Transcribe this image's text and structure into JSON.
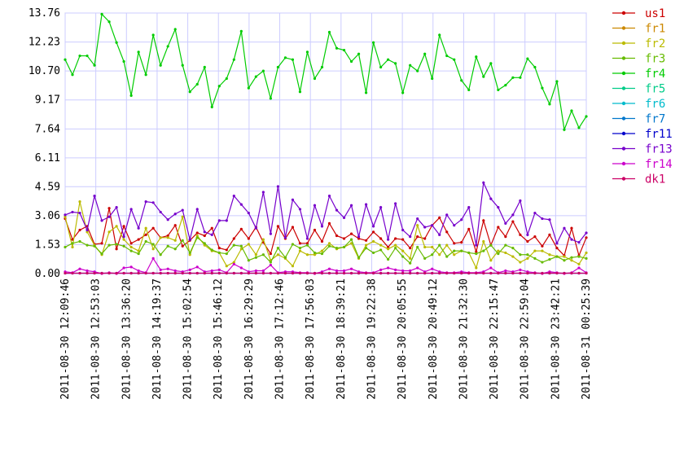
{
  "chart_data": {
    "type": "line",
    "title": "",
    "xlabel": "",
    "ylabel": "",
    "grid": true,
    "legend_position": "right",
    "y_ticks": [
      "0.00",
      "1.53",
      "3.06",
      "4.59",
      "6.11",
      "7.64",
      "9.17",
      "10.70",
      "12.23",
      "13.76"
    ],
    "y_tick_values": [
      0.0,
      1.53,
      3.06,
      4.59,
      6.11,
      7.64,
      9.17,
      10.7,
      12.23,
      13.76
    ],
    "ylim": [
      0,
      13.76
    ],
    "x_ticks": [
      "2011-08-30 12:09:46",
      "2011-08-30 12:53:03",
      "2011-08-30 13:36:20",
      "2011-08-30 14:19:37",
      "2011-08-30 15:02:54",
      "2011-08-30 15:46:12",
      "2011-08-30 16:29:29",
      "2011-08-30 17:12:46",
      "2011-08-30 17:56:03",
      "2011-08-30 18:39:21",
      "2011-08-30 19:22:38",
      "2011-08-30 20:05:55",
      "2011-08-30 20:49:12",
      "2011-08-30 21:32:30",
      "2011-08-30 22:15:47",
      "2011-08-30 22:59:04",
      "2011-08-30 23:42:21",
      "2011-08-31 00:25:39"
    ],
    "series": [
      {
        "name": "us1",
        "color": "#cc0000",
        "values": [
          2.9,
          1.8,
          2.3,
          2.5,
          1.55,
          1.6,
          3.45,
          1.3,
          2.5,
          1.6,
          1.8,
          2.05,
          2.4,
          1.9,
          2.0,
          2.55,
          1.45,
          1.75,
          2.15,
          2.0,
          2.4,
          1.35,
          1.25,
          1.85,
          2.35,
          1.85,
          2.45,
          1.65,
          1.05,
          2.5,
          1.85,
          2.45,
          1.6,
          1.6,
          2.3,
          1.7,
          2.65,
          2.0,
          1.85,
          2.1,
          1.85,
          1.75,
          2.2,
          1.85,
          1.4,
          1.85,
          1.8,
          1.35,
          1.95,
          1.85,
          2.55,
          2.95,
          2.2,
          1.6,
          1.65,
          2.35,
          1.15,
          2.8,
          1.5,
          2.45,
          1.95,
          2.75,
          2.05,
          1.7,
          1.95,
          1.45,
          2.05,
          1.35,
          0.95,
          2.4,
          0.95,
          1.9
        ]
      },
      {
        "name": "fr1",
        "color": "#cc8800",
        "values": []
      },
      {
        "name": "fr2",
        "color": "#bbbb00",
        "values": [
          3.0,
          1.4,
          3.8,
          2.2,
          1.5,
          1.0,
          2.2,
          2.5,
          1.8,
          1.4,
          1.2,
          2.4,
          1.3,
          1.9,
          1.9,
          1.75,
          3.0,
          1.0,
          2.0,
          1.5,
          1.2,
          1.1,
          0.4,
          0.6,
          1.3,
          1.55,
          1.0,
          1.8,
          0.7,
          1.0,
          0.8,
          0.4,
          1.2,
          1.0,
          1.0,
          1.2,
          1.6,
          1.3,
          1.4,
          1.6,
          0.8,
          1.5,
          1.7,
          1.5,
          1.3,
          1.5,
          1.2,
          0.8,
          2.55,
          1.4,
          1.4,
          1.0,
          1.5,
          1.0,
          1.2,
          1.1,
          0.3,
          1.7,
          0.7,
          1.2,
          1.1,
          0.9,
          0.6,
          0.8,
          1.2,
          1.2,
          1.0,
          0.9,
          0.9,
          0.7,
          0.5,
          1.1
        ]
      },
      {
        "name": "fr3",
        "color": "#66bb00",
        "values": [
          1.4,
          1.6,
          1.7,
          1.5,
          1.45,
          1.05,
          1.5,
          1.55,
          1.45,
          1.2,
          1.05,
          1.7,
          1.55,
          1.0,
          1.45,
          1.3,
          1.75,
          1.1,
          1.9,
          1.6,
          1.25,
          1.1,
          1.05,
          1.5,
          1.45,
          0.7,
          0.85,
          1.0,
          0.6,
          1.35,
          0.85,
          1.55,
          1.35,
          1.5,
          1.1,
          1.05,
          1.45,
          1.35,
          1.4,
          1.8,
          0.85,
          1.35,
          1.1,
          1.25,
          0.75,
          1.35,
          0.9,
          0.55,
          1.4,
          0.8,
          1.0,
          1.5,
          0.9,
          1.2,
          1.2,
          1.1,
          1.05,
          1.2,
          1.5,
          1.05,
          1.5,
          1.35,
          1.0,
          1.0,
          0.8,
          0.6,
          0.75,
          0.9,
          0.7,
          0.85,
          0.9,
          0.8
        ]
      },
      {
        "name": "fr4",
        "color": "#00cc00",
        "values": [
          11.3,
          10.5,
          11.5,
          11.5,
          11.0,
          13.7,
          13.3,
          12.2,
          11.2,
          9.4,
          11.7,
          10.5,
          12.6,
          11.0,
          12.0,
          12.9,
          11.0,
          9.6,
          10.0,
          10.9,
          8.8,
          9.9,
          10.3,
          11.3,
          12.8,
          9.8,
          10.4,
          10.7,
          9.25,
          10.9,
          11.4,
          11.3,
          9.6,
          11.7,
          10.3,
          10.9,
          12.75,
          11.9,
          11.8,
          11.2,
          11.6,
          9.55,
          12.2,
          10.9,
          11.3,
          11.1,
          9.55,
          11.0,
          10.7,
          11.6,
          10.3,
          12.6,
          11.5,
          11.3,
          10.2,
          9.7,
          11.45,
          10.4,
          11.1,
          9.7,
          9.95,
          10.35,
          10.35,
          11.35,
          10.9,
          9.8,
          8.95,
          10.15,
          7.6,
          8.6,
          7.7,
          8.3
        ]
      },
      {
        "name": "fr5",
        "color": "#00cc88",
        "values": []
      },
      {
        "name": "fr6",
        "color": "#00bbcc",
        "values": []
      },
      {
        "name": "fr7",
        "color": "#0077cc",
        "values": []
      },
      {
        "name": "fr11",
        "color": "#0000cc",
        "values": [
          0.02,
          0.02,
          0.02,
          0.02,
          0.02,
          0.02,
          0.02,
          0.02,
          0.02,
          0.02,
          0.02,
          0.02,
          0.02,
          0.02,
          0.02,
          0.02,
          0.02,
          0.02,
          0.02,
          0.02,
          0.02,
          0.02,
          0.02,
          0.02,
          0.02,
          0.02,
          0.02,
          0.02,
          0.02,
          0.02,
          0.02,
          0.02,
          0.02,
          0.02,
          0.02,
          0.02,
          0.02,
          0.02,
          0.02,
          0.02,
          0.02,
          0.02,
          0.02,
          0.02,
          0.02,
          0.02,
          0.02,
          0.02,
          0.02,
          0.02,
          0.02,
          0.02,
          0.02,
          0.02,
          0.02,
          0.02,
          0.02,
          0.02,
          0.02,
          0.02,
          0.02,
          0.02,
          0.02,
          0.02,
          0.02,
          0.02,
          0.02,
          0.02,
          0.02,
          0.02,
          0.02,
          0.02
        ]
      },
      {
        "name": "fr13",
        "color": "#7700cc",
        "values": [
          3.1,
          3.25,
          3.2,
          2.3,
          4.1,
          2.8,
          3.0,
          3.5,
          1.95,
          3.4,
          2.4,
          3.8,
          3.75,
          3.25,
          2.85,
          3.15,
          3.35,
          1.8,
          3.4,
          2.2,
          2.05,
          2.8,
          2.8,
          4.1,
          3.65,
          3.2,
          2.4,
          4.3,
          2.1,
          4.6,
          1.9,
          3.9,
          3.4,
          1.85,
          3.6,
          2.5,
          4.1,
          3.35,
          2.95,
          3.6,
          1.95,
          3.65,
          2.5,
          3.5,
          1.8,
          3.7,
          2.3,
          1.95,
          2.9,
          2.45,
          2.55,
          2.05,
          3.1,
          2.55,
          2.85,
          3.5,
          1.5,
          4.8,
          3.95,
          3.5,
          2.65,
          3.1,
          3.85,
          2.05,
          3.2,
          2.9,
          2.85,
          1.6,
          2.4,
          1.8,
          1.65,
          2.15
        ]
      },
      {
        "name": "fr14",
        "color": "#cc00cc",
        "values": [
          0.1,
          0.05,
          0.25,
          0.15,
          0.1,
          0.0,
          0.05,
          0.0,
          0.3,
          0.35,
          0.15,
          0.05,
          0.8,
          0.2,
          0.25,
          0.15,
          0.1,
          0.2,
          0.35,
          0.1,
          0.15,
          0.2,
          0.05,
          0.5,
          0.3,
          0.1,
          0.15,
          0.15,
          0.45,
          0.05,
          0.1,
          0.1,
          0.05,
          0.05,
          0.0,
          0.1,
          0.25,
          0.15,
          0.15,
          0.25,
          0.1,
          0.05,
          0.05,
          0.2,
          0.3,
          0.2,
          0.15,
          0.15,
          0.3,
          0.1,
          0.25,
          0.1,
          0.05,
          0.05,
          0.1,
          0.05,
          0.05,
          0.1,
          0.3,
          0.05,
          0.15,
          0.1,
          0.2,
          0.1,
          0.05,
          0.0,
          0.1,
          0.05,
          0.0,
          0.05,
          0.3,
          0.05
        ]
      },
      {
        "name": "dk1",
        "color": "#cc0066",
        "values": [
          0.02,
          0.02,
          0.02,
          0.02,
          0.02,
          0.02,
          0.02,
          0.02,
          0.02,
          0.02,
          0.02,
          0.02,
          0.02,
          0.02,
          0.02,
          0.02,
          0.02,
          0.02,
          0.02,
          0.02,
          0.02,
          0.02,
          0.02,
          0.02,
          0.02,
          0.02,
          0.02,
          0.02,
          0.02,
          0.02,
          0.02,
          0.02,
          0.02,
          0.02,
          0.02,
          0.02,
          0.02,
          0.02,
          0.02,
          0.02,
          0.02,
          0.02,
          0.02,
          0.02,
          0.02,
          0.02,
          0.02,
          0.02,
          0.02,
          0.02,
          0.02,
          0.02,
          0.02,
          0.02,
          0.02,
          0.02,
          0.02,
          0.02,
          0.02,
          0.02,
          0.02,
          0.02,
          0.02,
          0.02,
          0.02,
          0.02,
          0.02,
          0.02,
          0.02,
          0.02,
          0.02,
          0.02
        ]
      }
    ]
  }
}
